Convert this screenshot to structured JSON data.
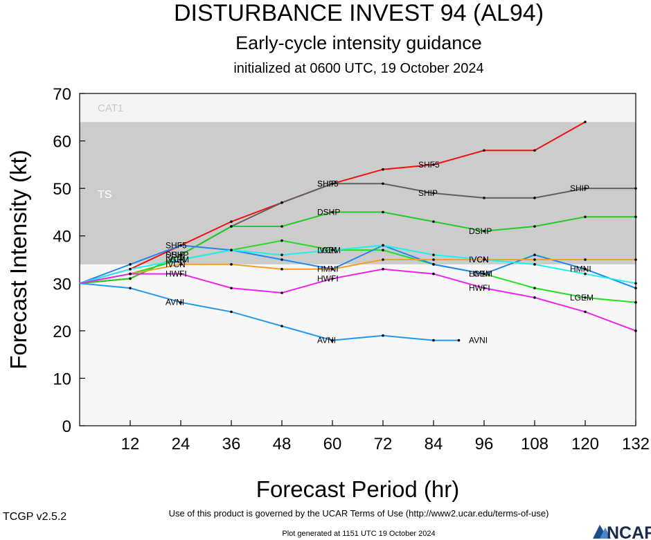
{
  "header": {
    "title": "DISTURBANCE INVEST 94 (AL94)",
    "subtitle": "Early-cycle intensity guidance",
    "init_line": "initialized at 0600 UTC, 19 October 2024"
  },
  "footer": {
    "terms": "Use of this product is governed by the UCAR Terms of Use (http://www2.ucar.edu/terms-of-use)",
    "version": "TCGP v2.5.2",
    "generated": "Plot generated at 1151 UTC   19 October 2024",
    "logo_text": "NCAR",
    "logo_icon": "ncar-logo-icon"
  },
  "chart_data": {
    "type": "line",
    "title": "DISTURBANCE INVEST 94 (AL94)",
    "xlabel": "Forecast Period (hr)",
    "ylabel": "Forecast Intensity (kt)",
    "xlim": [
      0,
      132
    ],
    "ylim": [
      0,
      70
    ],
    "xticks": [
      12,
      24,
      36,
      48,
      60,
      72,
      84,
      96,
      108,
      120,
      132
    ],
    "yticks": [
      0,
      10,
      20,
      30,
      40,
      50,
      60,
      70
    ],
    "bands": [
      {
        "name": "TS",
        "from": 34,
        "to": 64,
        "color": "#cccccc",
        "label_color": "#ffffff"
      },
      {
        "name": "CAT1",
        "from": 64,
        "to": 70,
        "color": "#f4f4f4",
        "label_color": "#c8c8c8"
      }
    ],
    "series": [
      {
        "name": "SHF5",
        "color": "#ee1111",
        "x": [
          0,
          12,
          24,
          36,
          48,
          60,
          72,
          84,
          96,
          108,
          120
        ],
        "values": [
          30,
          33,
          38,
          43,
          47,
          51,
          54,
          55,
          58,
          58,
          64
        ],
        "label_at": [
          24,
          60,
          84
        ]
      },
      {
        "name": "SHIP",
        "color": "#606060",
        "x": [
          0,
          12,
          24,
          36,
          48,
          60,
          72,
          84,
          96,
          108,
          120,
          132
        ],
        "values": [
          30,
          31,
          36,
          42,
          47,
          51,
          51,
          49,
          48,
          48,
          50,
          50
        ],
        "label_at": [
          24,
          60,
          84,
          120
        ]
      },
      {
        "name": "DSHP",
        "color": "#22cc22",
        "x": [
          0,
          12,
          24,
          36,
          48,
          60,
          72,
          84,
          96,
          108,
          120,
          132
        ],
        "values": [
          30,
          31,
          36,
          42,
          42,
          45,
          45,
          43,
          41,
          42,
          44,
          44
        ],
        "label_at": [
          24,
          60,
          96,
          132
        ]
      },
      {
        "name": "LGEM",
        "color": "#22dd22",
        "x": [
          0,
          12,
          24,
          36,
          48,
          60,
          72,
          84,
          96,
          108,
          120,
          132
        ],
        "values": [
          30,
          32,
          35,
          37,
          39,
          37,
          37,
          34,
          32,
          29,
          27,
          26
        ],
        "label_at": [
          24,
          60,
          96,
          120
        ]
      },
      {
        "name": "HMNI",
        "color": "#2288ee",
        "x": [
          0,
          12,
          24,
          36,
          48,
          60,
          72,
          84,
          96,
          108,
          120,
          132
        ],
        "values": [
          30,
          34,
          38,
          37,
          35,
          33,
          38,
          34,
          32,
          36,
          33,
          29
        ],
        "label_at": [
          60,
          96,
          120
        ]
      },
      {
        "name": "IVCN",
        "color": "#22eeee",
        "x": [
          0,
          12,
          24,
          36,
          48,
          60,
          72,
          84,
          96,
          108,
          120,
          132
        ],
        "values": [
          30,
          33,
          35,
          37,
          36,
          37,
          38,
          36,
          35,
          34,
          32,
          30
        ],
        "label_at": [
          24,
          60,
          96,
          132
        ]
      },
      {
        "name": "IVCN_ORANGE",
        "display": "IVCN",
        "color": "#f5a020",
        "x": [
          0,
          12,
          24,
          36,
          48,
          60,
          72,
          84,
          96,
          108,
          120,
          132
        ],
        "values": [
          30,
          32,
          34,
          34,
          33,
          33,
          35,
          35,
          35,
          35,
          35,
          35
        ],
        "label_at": [
          24,
          96,
          132
        ]
      },
      {
        "name": "HWFI",
        "color": "#ee22ee",
        "x": [
          0,
          12,
          24,
          36,
          48,
          60,
          72,
          84,
          96,
          108,
          120,
          132
        ],
        "values": [
          30,
          32,
          32,
          29,
          28,
          31,
          33,
          32,
          29,
          27,
          24,
          20
        ],
        "label_at": [
          24,
          60,
          96,
          132
        ]
      },
      {
        "name": "AVNI",
        "color": "#2299ee",
        "x": [
          0,
          12,
          24,
          36,
          48,
          60,
          72,
          84,
          90
        ],
        "values": [
          30,
          29,
          26,
          24,
          21,
          18,
          19,
          18,
          18
        ],
        "label_at": [
          24,
          60,
          96
        ]
      }
    ]
  }
}
